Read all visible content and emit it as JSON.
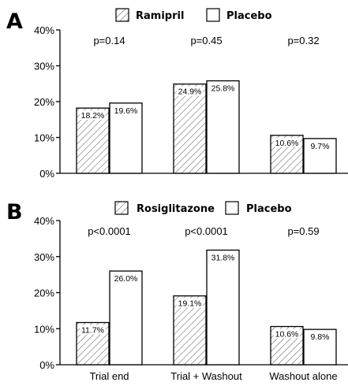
{
  "chart_data": [
    {
      "type": "bar",
      "panel": "A",
      "categories": [
        "Trial end",
        "Trial + Washout",
        "Washout alone"
      ],
      "series": [
        {
          "name": "Ramipril",
          "values": [
            18.2,
            24.9,
            10.6
          ],
          "labels": [
            "18.2%",
            "24.9%",
            "10.6%"
          ],
          "fill": "hatched"
        },
        {
          "name": "Placebo",
          "values": [
            19.6,
            25.8,
            9.7
          ],
          "labels": [
            "19.6%",
            "25.8%",
            "9.7%"
          ],
          "fill": "#ffffff"
        }
      ],
      "p_values": [
        "p=0.14",
        "p=0.45",
        "p=0.32"
      ],
      "yticks": [
        "0%",
        "10%",
        "20%",
        "30%",
        "40%"
      ],
      "ylim": [
        0,
        40
      ],
      "show_category_labels": false
    },
    {
      "type": "bar",
      "panel": "B",
      "categories": [
        "Trial end",
        "Trial + Washout",
        "Washout alone"
      ],
      "series": [
        {
          "name": "Rosiglitazone",
          "values": [
            11.7,
            19.1,
            10.6
          ],
          "labels": [
            "11.7%",
            "19.1%",
            "10.6%"
          ],
          "fill": "hatched"
        },
        {
          "name": "Placebo",
          "values": [
            26.0,
            31.8,
            9.8
          ],
          "labels": [
            "26.0%",
            "31.8%",
            "9.8%"
          ],
          "fill": "#ffffff"
        }
      ],
      "p_values": [
        "p<0.0001",
        "p<0.0001",
        "p=0.59"
      ],
      "yticks": [
        "0%",
        "10%",
        "20%",
        "30%",
        "40%"
      ],
      "ylim": [
        0,
        40
      ],
      "show_category_labels": true
    }
  ],
  "colors": {
    "axis": "#000000",
    "hatch": "#555555",
    "placebo_fill": "#ffffff"
  }
}
